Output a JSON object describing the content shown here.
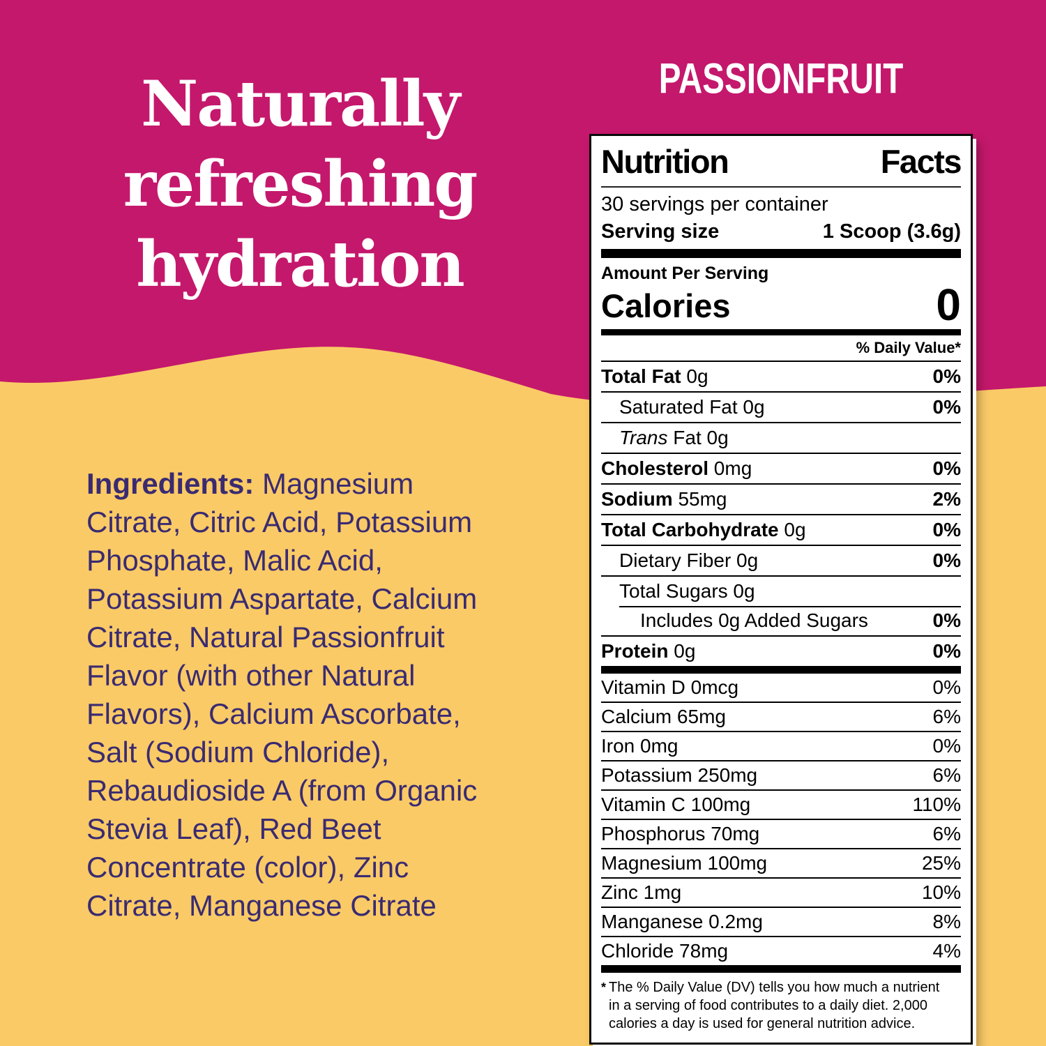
{
  "colors": {
    "pink": "#C4186C",
    "yellow": "#FACA66",
    "purple": "#3A2B71",
    "label_ink": "#000000",
    "text_white": "#FFFFFF"
  },
  "hero": {
    "title_lines": [
      "Naturally",
      "refreshing",
      "hydration"
    ],
    "flavor": "PASSIONFRUIT"
  },
  "ingredients": {
    "label": "Ingredients:",
    "text": "Magnesium\nCitrate, Citric Acid, Potassium\nPhosphate, Malic Acid,\nPotassium Aspartate, Calcium\nCitrate, Natural Passionfruit\nFlavor (with other Natural\nFlavors), Calcium Ascorbate,\nSalt (Sodium Chloride),\nRebaudioside A (from Organic\nStevia Leaf), Red Beet\nConcentrate (color), Zinc\nCitrate, Manganese Citrate"
  },
  "nutrition": {
    "title": [
      "Nutrition",
      "Facts"
    ],
    "servings": "30 servings per container",
    "serving_size_label": "Serving size",
    "serving_size_value": "1 Scoop (3.6g)",
    "amount_per_serving": "Amount Per Serving",
    "calories_label": "Calories",
    "calories_value": "0",
    "daily_value_header": "% Daily Value*",
    "main_rows": [
      {
        "name": "Total Fat",
        "amount": "0g",
        "dv": "0%",
        "bold": true,
        "indent": 0
      },
      {
        "name": "Saturated Fat",
        "amount": "0g",
        "dv": "0%",
        "bold": false,
        "indent": 1
      },
      {
        "name": "Trans",
        "amount": "Fat 0g",
        "dv": "",
        "bold": false,
        "indent": 1,
        "italic_name": true
      },
      {
        "name": "Cholesterol",
        "amount": "0mg",
        "dv": "0%",
        "bold": true,
        "indent": 0
      },
      {
        "name": "Sodium",
        "amount": "55mg",
        "dv": "2%",
        "bold": true,
        "indent": 0
      },
      {
        "name": "Total Carbohydrate",
        "amount": "0g",
        "dv": "0%",
        "bold": true,
        "indent": 0
      },
      {
        "name": "Dietary Fiber",
        "amount": "0g",
        "dv": "0%",
        "bold": false,
        "indent": 1
      },
      {
        "name": "Total Sugars",
        "amount": "0g",
        "dv": "",
        "bold": false,
        "indent": 1,
        "sep_below": false
      },
      {
        "name": "Includes 0g Added Sugars",
        "amount": "",
        "dv": "0%",
        "bold": false,
        "indent": 2,
        "partial_rule": true
      },
      {
        "name": "Protein",
        "amount": "0g",
        "dv": "0%",
        "bold": true,
        "indent": 0,
        "sep_below": false
      }
    ],
    "micro_rows": [
      {
        "name": "Vitamin D",
        "amount": "0mcg",
        "dv": "0%"
      },
      {
        "name": "Calcium",
        "amount": "65mg",
        "dv": "6%"
      },
      {
        "name": "Iron",
        "amount": "0mg",
        "dv": "0%"
      },
      {
        "name": "Potassium",
        "amount": "250mg",
        "dv": "6%"
      },
      {
        "name": "Vitamin C",
        "amount": "100mg",
        "dv": "110%"
      },
      {
        "name": "Phosphorus",
        "amount": "70mg",
        "dv": "6%"
      },
      {
        "name": "Magnesium",
        "amount": "100mg",
        "dv": "25%"
      },
      {
        "name": "Zinc",
        "amount": "1mg",
        "dv": "10%"
      },
      {
        "name": "Manganese",
        "amount": "0.2mg",
        "dv": "8%"
      },
      {
        "name": "Chloride",
        "amount": "78mg",
        "dv": "4%",
        "sep_below": false
      }
    ],
    "footnote_marker": "*",
    "footnote": "The % Daily Value (DV) tells you how much a nutrient\nin a serving of food contributes to a daily diet. 2,000\ncalories a day is used for general nutrition advice."
  }
}
